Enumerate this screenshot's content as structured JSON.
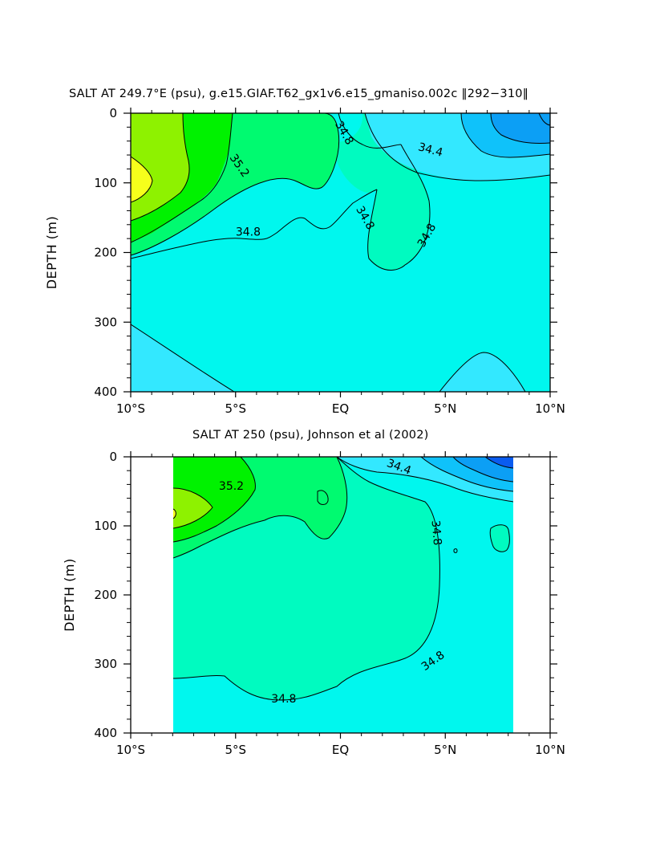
{
  "colors": {
    "s33_8": "#0a5cf0",
    "s34_0": "#0c9ff5",
    "s34_2": "#0fc2fa",
    "s34_4": "#33e8ff",
    "s34_6": "#00f7ee",
    "s34_8": "#00fbc0",
    "s35_0": "#00fa70",
    "s35_2": "#00f200",
    "s35_4": "#8ef200",
    "s35_6": "#f6ff1b"
  },
  "chart_data": [
    {
      "type": "contour",
      "title": "SALT AT 249.7°E (psu), g.e15.GIAF.T62_gx1v6.e15_gmaniso.002c ‖292−310‖",
      "ylabel": "DEPTH (m)",
      "xlim": [
        -10,
        10
      ],
      "ylim": [
        400,
        0
      ],
      "x_ticks": [
        {
          "value": -10,
          "label": "10°S"
        },
        {
          "value": -5,
          "label": "5°S"
        },
        {
          "value": 0,
          "label": "EQ"
        },
        {
          "value": 5,
          "label": "5°N"
        },
        {
          "value": 10,
          "label": "10°N"
        }
      ],
      "y_ticks": [
        {
          "value": 0,
          "label": "0"
        },
        {
          "value": 100,
          "label": "100"
        },
        {
          "value": 200,
          "label": "200"
        },
        {
          "value": 300,
          "label": "300"
        },
        {
          "value": 400,
          "label": "400"
        }
      ],
      "contour_labels": [
        {
          "value": "35.2",
          "x": -4.8,
          "y": 75,
          "rotation": 55
        },
        {
          "value": "34.8",
          "x": 0.2,
          "y": 28,
          "rotation": 60
        },
        {
          "value": "34.4",
          "x": 4.3,
          "y": 52,
          "rotation": 15
        },
        {
          "value": "34.8",
          "x": 1.2,
          "y": 150,
          "rotation": 60
        },
        {
          "value": "34.8",
          "x": 4.1,
          "y": 175,
          "rotation": -60
        },
        {
          "value": "34.8",
          "x": -4.4,
          "y": 170,
          "rotation": 0
        }
      ]
    },
    {
      "type": "contour",
      "title": "SALT AT 250 (psu), Johnson et al (2002)",
      "ylabel": "DEPTH (m)",
      "xlim": [
        -10,
        10
      ],
      "ylim": [
        400,
        0
      ],
      "x_ticks": [
        {
          "value": -10,
          "label": "10°S"
        },
        {
          "value": -5,
          "label": "5°S"
        },
        {
          "value": 0,
          "label": "EQ"
        },
        {
          "value": 5,
          "label": "5°N"
        },
        {
          "value": 10,
          "label": "10°N"
        }
      ],
      "y_ticks": [
        {
          "value": 0,
          "label": "0"
        },
        {
          "value": 100,
          "label": "100"
        },
        {
          "value": 200,
          "label": "200"
        },
        {
          "value": 300,
          "label": "300"
        },
        {
          "value": 400,
          "label": "400"
        }
      ],
      "contour_labels": [
        {
          "value": "35.2",
          "x": -5.2,
          "y": 42,
          "rotation": 0
        },
        {
          "value": "34.4",
          "x": 2.8,
          "y": 14,
          "rotation": 20
        },
        {
          "value": "34.8",
          "x": 4.6,
          "y": 110,
          "rotation": 85
        },
        {
          "value": "34.8",
          "x": 4.4,
          "y": 295,
          "rotation": -35
        },
        {
          "value": "34.8",
          "x": -2.7,
          "y": 350,
          "rotation": 0
        }
      ]
    }
  ]
}
